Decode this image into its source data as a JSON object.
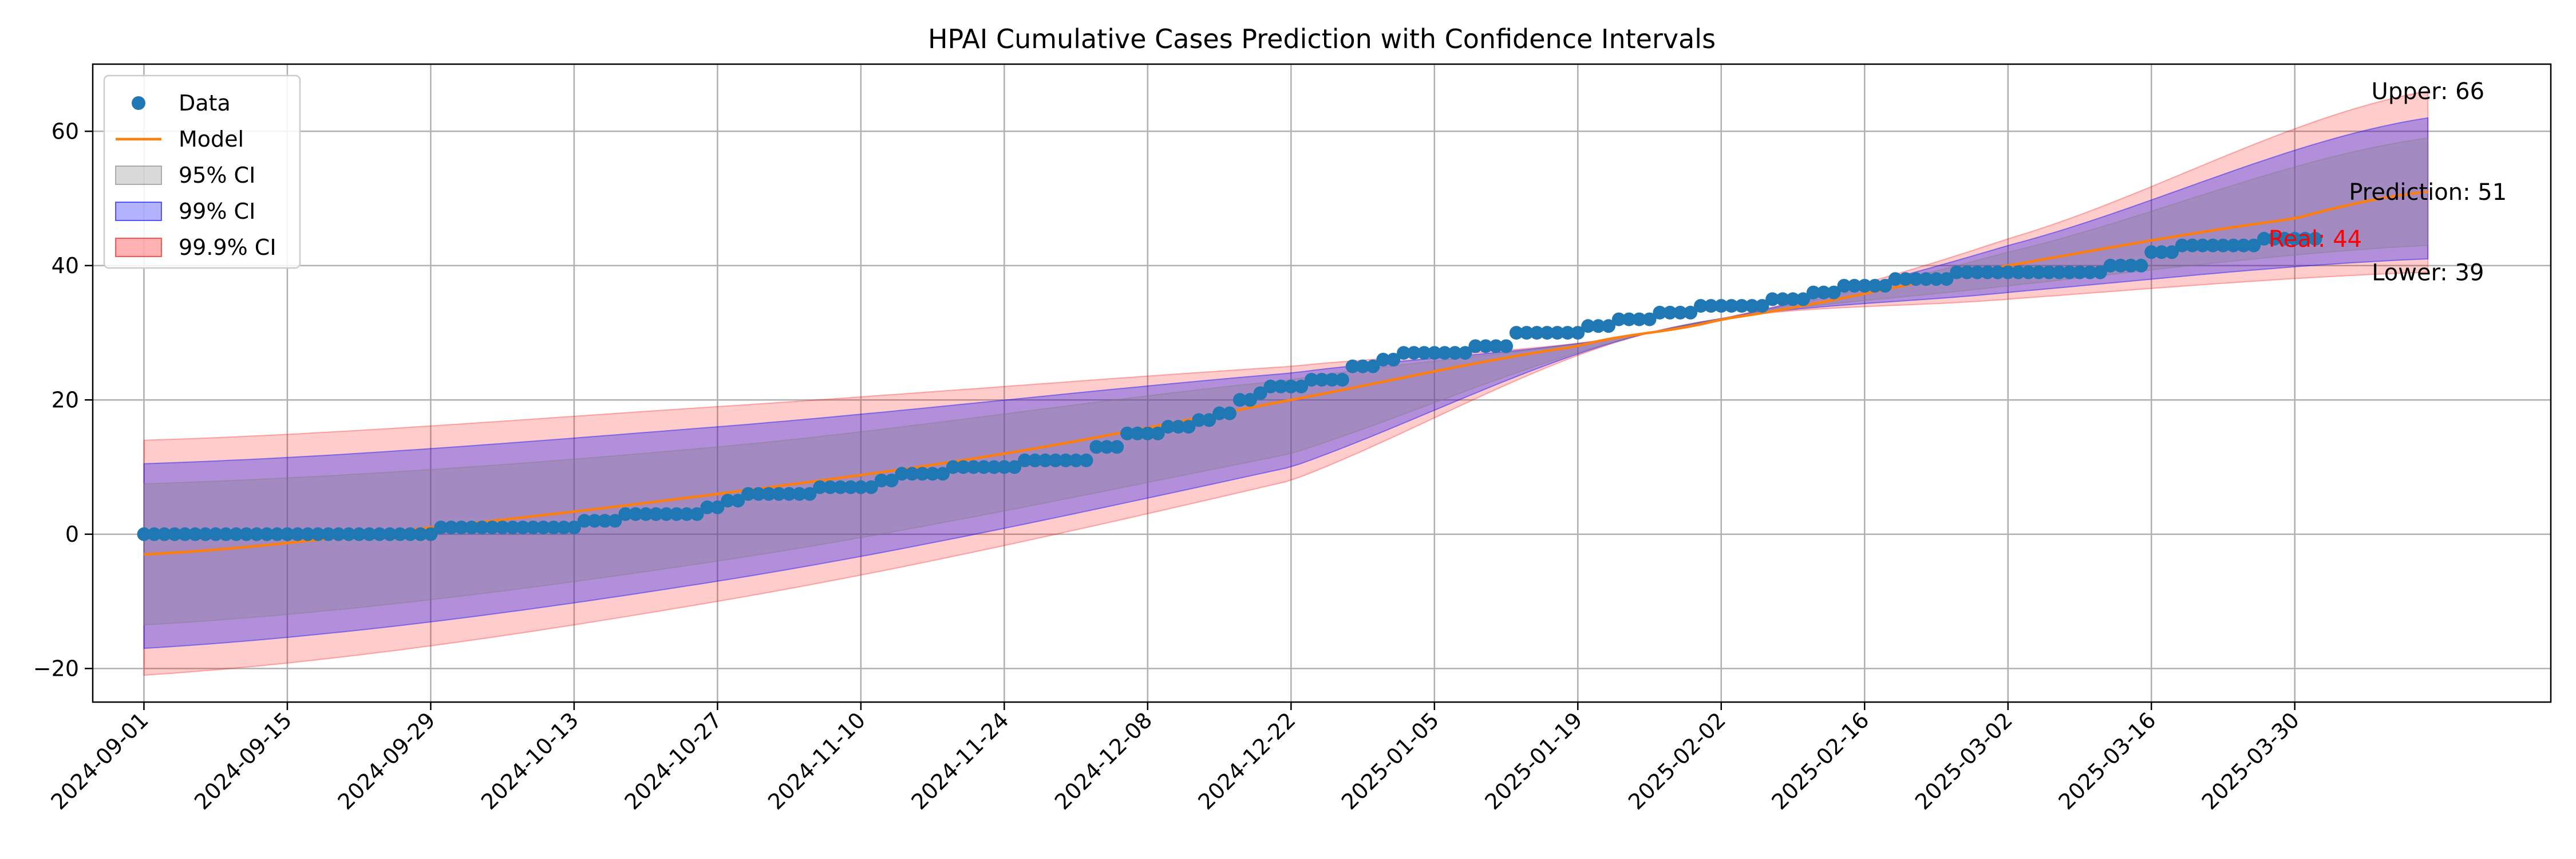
{
  "chart_data": {
    "type": "line",
    "title": "HPAI Cumulative Cases Prediction with Confidence Intervals",
    "xlabel": "",
    "ylabel": "",
    "x_range": [
      "2024-08-27",
      "2025-04-24"
    ],
    "ylim": [
      -25,
      70
    ],
    "grid": true,
    "legend_placement": "upper-left",
    "x_ticks": [
      "2024-09-01",
      "2024-09-15",
      "2024-09-29",
      "2024-10-13",
      "2024-10-27",
      "2024-11-10",
      "2024-11-24",
      "2024-12-08",
      "2024-12-22",
      "2025-01-05",
      "2025-01-19",
      "2025-02-02",
      "2025-02-16",
      "2025-03-02",
      "2025-03-16",
      "2025-03-30"
    ],
    "y_ticks": [
      -20,
      0,
      20,
      40,
      60
    ],
    "legend": [
      {
        "label": "Data",
        "kind": "marker",
        "color": "#1f77b4"
      },
      {
        "label": "Model",
        "kind": "line",
        "color": "#ff7f0e"
      },
      {
        "label": "95% CI",
        "kind": "patch",
        "color": "#808080"
      },
      {
        "label": "99% CI",
        "kind": "patch",
        "color": "#0000ff"
      },
      {
        "label": "99.9% CI",
        "kind": "patch",
        "color": "#ff0000"
      }
    ],
    "model": {
      "color": "#ff7f0e",
      "points": [
        {
          "x": "2024-09-01",
          "y": -3
        },
        {
          "x": "2024-09-29",
          "y": 1
        },
        {
          "x": "2024-10-27",
          "y": 6
        },
        {
          "x": "2024-11-24",
          "y": 12
        },
        {
          "x": "2024-12-22",
          "y": 20
        },
        {
          "x": "2025-01-19",
          "y": 28
        },
        {
          "x": "2025-02-02",
          "y": 32
        },
        {
          "x": "2025-03-02",
          "y": 40
        },
        {
          "x": "2025-03-30",
          "y": 47
        },
        {
          "x": "2025-04-12",
          "y": 51
        }
      ]
    },
    "confidence_bands": [
      {
        "name": "99.9% CI",
        "color": "#ff0000",
        "opacity": 0.2,
        "points": [
          {
            "x": "2024-09-01",
            "lower": -21,
            "upper": 14
          },
          {
            "x": "2024-10-27",
            "lower": -10,
            "upper": 19
          },
          {
            "x": "2024-12-22",
            "lower": 8,
            "upper": 25
          },
          {
            "x": "2025-01-26",
            "lower": 30,
            "upper": 30
          },
          {
            "x": "2025-03-02",
            "lower": 35,
            "upper": 44
          },
          {
            "x": "2025-04-12",
            "lower": 39,
            "upper": 66
          }
        ]
      },
      {
        "name": "99% CI",
        "color": "#0000ff",
        "opacity": 0.3,
        "points": [
          {
            "x": "2024-09-01",
            "lower": -17,
            "upper": 10.5
          },
          {
            "x": "2024-10-27",
            "lower": -7,
            "upper": 16
          },
          {
            "x": "2024-12-22",
            "lower": 10,
            "upper": 24
          },
          {
            "x": "2025-01-26",
            "lower": 30,
            "upper": 30
          },
          {
            "x": "2025-03-02",
            "lower": 36,
            "upper": 43
          },
          {
            "x": "2025-04-12",
            "lower": 41,
            "upper": 62
          }
        ]
      },
      {
        "name": "95% CI",
        "color": "#808080",
        "opacity": 0.3,
        "points": [
          {
            "x": "2024-09-01",
            "lower": -13.5,
            "upper": 7.5
          },
          {
            "x": "2024-10-27",
            "lower": -4,
            "upper": 13
          },
          {
            "x": "2024-12-22",
            "lower": 12,
            "upper": 23
          },
          {
            "x": "2025-01-26",
            "lower": 30,
            "upper": 30
          },
          {
            "x": "2025-03-02",
            "lower": 37,
            "upper": 42
          },
          {
            "x": "2025-04-12",
            "lower": 43,
            "upper": 59
          }
        ]
      }
    ],
    "data_steps": [
      {
        "x": "2024-09-01",
        "y": 0
      },
      {
        "x": "2024-09-30",
        "y": 1
      },
      {
        "x": "2024-10-14",
        "y": 2
      },
      {
        "x": "2024-10-18",
        "y": 3
      },
      {
        "x": "2024-10-26",
        "y": 4
      },
      {
        "x": "2024-10-28",
        "y": 5
      },
      {
        "x": "2024-10-30",
        "y": 6
      },
      {
        "x": "2024-11-06",
        "y": 7
      },
      {
        "x": "2024-11-12",
        "y": 8
      },
      {
        "x": "2024-11-14",
        "y": 9
      },
      {
        "x": "2024-11-19",
        "y": 10
      },
      {
        "x": "2024-11-26",
        "y": 11
      },
      {
        "x": "2024-12-03",
        "y": 13
      },
      {
        "x": "2024-12-06",
        "y": 15
      },
      {
        "x": "2024-12-10",
        "y": 16
      },
      {
        "x": "2024-12-13",
        "y": 17
      },
      {
        "x": "2024-12-15",
        "y": 18
      },
      {
        "x": "2024-12-17",
        "y": 20
      },
      {
        "x": "2024-12-19",
        "y": 21
      },
      {
        "x": "2024-12-20",
        "y": 22
      },
      {
        "x": "2024-12-24",
        "y": 23
      },
      {
        "x": "2024-12-28",
        "y": 25
      },
      {
        "x": "2024-12-31",
        "y": 26
      },
      {
        "x": "2025-01-02",
        "y": 27
      },
      {
        "x": "2025-01-09",
        "y": 28
      },
      {
        "x": "2025-01-13",
        "y": 30
      },
      {
        "x": "2025-01-20",
        "y": 31
      },
      {
        "x": "2025-01-23",
        "y": 32
      },
      {
        "x": "2025-01-27",
        "y": 33
      },
      {
        "x": "2025-01-31",
        "y": 34
      },
      {
        "x": "2025-02-07",
        "y": 35
      },
      {
        "x": "2025-02-11",
        "y": 36
      },
      {
        "x": "2025-02-14",
        "y": 37
      },
      {
        "x": "2025-02-19",
        "y": 38
      },
      {
        "x": "2025-02-25",
        "y": 39
      },
      {
        "x": "2025-03-12",
        "y": 40
      },
      {
        "x": "2025-03-16",
        "y": 42
      },
      {
        "x": "2025-03-19",
        "y": 43
      },
      {
        "x": "2025-03-27",
        "y": 44
      },
      {
        "x": "2025-04-01",
        "y": 44
      }
    ],
    "data_color": "#1f77b4",
    "annotations": [
      {
        "text": "Upper: 66",
        "x": "2025-04-12",
        "y": 66,
        "color": "#000000"
      },
      {
        "text": "Prediction: 51",
        "x": "2025-04-12",
        "y": 51,
        "color": "#000000"
      },
      {
        "text": "Real: 44",
        "x": "2025-04-01",
        "y": 44,
        "color": "#ff0000"
      },
      {
        "text": "Lower: 39",
        "x": "2025-04-12",
        "y": 39,
        "color": "#000000"
      }
    ]
  }
}
